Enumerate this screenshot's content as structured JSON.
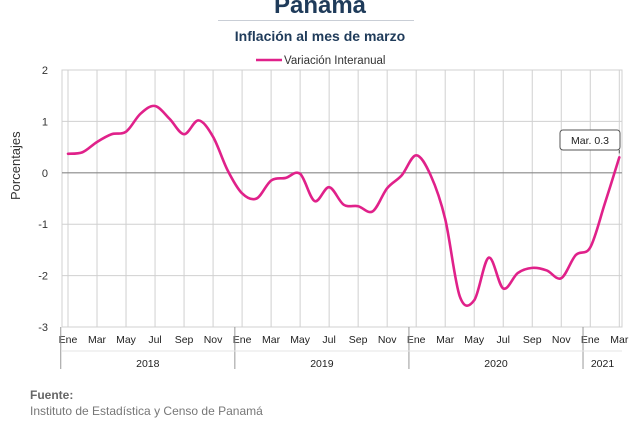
{
  "page": {
    "title": "Panamá",
    "subtitle": "Inflación al mes de marzo",
    "source_label": "Fuente:",
    "source_text": "Instituto de Estadística y Censo de Panamá"
  },
  "colors": {
    "series": "#e0218a",
    "grid": "#d0d0d0",
    "zero_line": "#888888",
    "title": "#1f3b5a"
  },
  "chart_data": {
    "type": "line",
    "ylabel": "Porcentajes",
    "ylim": [
      -3,
      2
    ],
    "yticks": [
      2,
      1,
      0,
      -1,
      -2,
      -3
    ],
    "grid": true,
    "legend_position": "top-center",
    "month_labels": [
      "Ene",
      "Mar",
      "May",
      "Jul",
      "Sep",
      "Nov",
      "Ene",
      "Mar",
      "May",
      "Jul",
      "Sep",
      "Nov",
      "Ene",
      "Mar",
      "May",
      "Jul",
      "Sep",
      "Nov",
      "Ene",
      "Mar"
    ],
    "month_label_index": [
      0,
      2,
      4,
      6,
      8,
      10,
      12,
      14,
      16,
      18,
      20,
      22,
      24,
      26,
      28,
      30,
      32,
      34,
      36,
      38
    ],
    "years": [
      {
        "label": "2018",
        "start": 0,
        "end": 12
      },
      {
        "label": "2019",
        "start": 12,
        "end": 24
      },
      {
        "label": "2020",
        "start": 24,
        "end": 36
      },
      {
        "label": "2021",
        "start": 36,
        "end": 39
      }
    ],
    "series": [
      {
        "name": "Variación Interanual",
        "x": [
          "2018-01",
          "2018-02",
          "2018-03",
          "2018-04",
          "2018-05",
          "2018-06",
          "2018-07",
          "2018-08",
          "2018-09",
          "2018-10",
          "2018-11",
          "2018-12",
          "2019-01",
          "2019-02",
          "2019-03",
          "2019-04",
          "2019-05",
          "2019-06",
          "2019-07",
          "2019-08",
          "2019-09",
          "2019-10",
          "2019-11",
          "2019-12",
          "2020-01",
          "2020-02",
          "2020-03",
          "2020-04",
          "2020-05",
          "2020-06",
          "2020-07",
          "2020-08",
          "2020-09",
          "2020-10",
          "2020-11",
          "2020-12",
          "2021-01",
          "2021-02",
          "2021-03"
        ],
        "values": [
          0.37,
          0.4,
          0.6,
          0.75,
          0.8,
          1.15,
          1.3,
          1.05,
          0.75,
          1.02,
          0.7,
          0.05,
          -0.4,
          -0.5,
          -0.15,
          -0.1,
          -0.02,
          -0.55,
          -0.28,
          -0.62,
          -0.65,
          -0.75,
          -0.3,
          -0.05,
          0.34,
          -0.05,
          -0.9,
          -2.4,
          -2.48,
          -1.65,
          -2.25,
          -1.95,
          -1.85,
          -1.9,
          -2.05,
          -1.6,
          -1.45,
          -0.6,
          0.3
        ]
      }
    ],
    "annotation": {
      "text": "Mar. 0.3",
      "index": 38
    }
  }
}
